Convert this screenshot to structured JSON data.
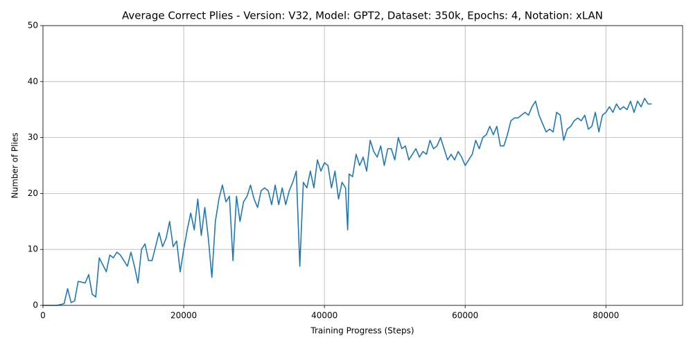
{
  "chart_data": {
    "type": "line",
    "title": "Average Correct Plies - Version: V32, Model: GPT2, Dataset: 350k, Epochs: 4, Notation: xLAN",
    "x_label": "Training Progress (Steps)",
    "y_label": "Number of Plies",
    "x": [
      0,
      1000,
      2000,
      3000,
      3500,
      4000,
      4500,
      5000,
      6000,
      6500,
      7000,
      7500,
      8000,
      9000,
      9500,
      10000,
      10500,
      11000,
      12000,
      12500,
      13000,
      13500,
      14000,
      14500,
      15000,
      15500,
      16000,
      16500,
      17000,
      17500,
      18000,
      18500,
      19000,
      19500,
      20000,
      20500,
      21000,
      21500,
      22000,
      22500,
      23000,
      23500,
      24000,
      24500,
      25000,
      25500,
      26000,
      26500,
      27000,
      27500,
      28000,
      28500,
      29000,
      29500,
      30000,
      30500,
      31000,
      31500,
      32000,
      32500,
      33000,
      33500,
      34000,
      34500,
      35000,
      35500,
      36000,
      36500,
      37000,
      37500,
      38000,
      38500,
      39000,
      39500,
      40000,
      40500,
      41000,
      41500,
      42000,
      42500,
      43000,
      43300,
      43500,
      44000,
      44500,
      45000,
      45500,
      46000,
      46500,
      47000,
      47500,
      48000,
      48500,
      49000,
      49500,
      50000,
      50500,
      51000,
      51500,
      52000,
      52500,
      53000,
      53500,
      54000,
      54500,
      55000,
      55500,
      56000,
      56500,
      57000,
      57500,
      58000,
      58500,
      59000,
      59500,
      60000,
      60500,
      61000,
      61500,
      62000,
      62500,
      63000,
      63500,
      64000,
      64500,
      65000,
      65500,
      66000,
      66500,
      67000,
      67500,
      68000,
      68500,
      69000,
      69500,
      70000,
      70500,
      71000,
      71500,
      72000,
      72500,
      73000,
      73500,
      74000,
      74500,
      75000,
      75500,
      76000,
      76500,
      77000,
      77500,
      78000,
      78500,
      79000,
      79500,
      80000,
      80500,
      81000,
      81500,
      82000,
      82500,
      83000,
      83500,
      84000,
      84500,
      85000,
      85500,
      86000,
      86500
    ],
    "series": [
      {
        "name": "Average Correct Plies",
        "color": "#1f77b4",
        "values": [
          0,
          0,
          0,
          0.3,
          3,
          0.5,
          0.8,
          4.3,
          4,
          5.5,
          2,
          1.5,
          8.5,
          6,
          9,
          8.5,
          9.5,
          9,
          7,
          9.5,
          7,
          4,
          10,
          11,
          8,
          8,
          10.5,
          13,
          10.5,
          12,
          15,
          10.5,
          11.5,
          6,
          10,
          13.5,
          16.5,
          13.5,
          19,
          12.5,
          17.5,
          12,
          5,
          15,
          19,
          21.5,
          18.5,
          19.5,
          8,
          19.5,
          15,
          18.5,
          19.5,
          21.5,
          19,
          17.5,
          20.5,
          21,
          20.5,
          18,
          21.5,
          18,
          21,
          18,
          20.5,
          22,
          24,
          7,
          22,
          21,
          24,
          21,
          26,
          24,
          25.5,
          25,
          21,
          24,
          19,
          22,
          21,
          13.5,
          23.5,
          23,
          27,
          25,
          26.5,
          24,
          29.5,
          27.5,
          26.5,
          28.5,
          25,
          28,
          28,
          26,
          30,
          28,
          28.5,
          26,
          27,
          28,
          26.5,
          27.5,
          27,
          29.5,
          28,
          28.5,
          30,
          28,
          26,
          27,
          26,
          27.5,
          26.5,
          25,
          26,
          27,
          29.5,
          28,
          30,
          30.5,
          32,
          30.5,
          32,
          28.5,
          28.5,
          30.5,
          33,
          33.5,
          33.5,
          34,
          34.5,
          34,
          35.5,
          36.5,
          34,
          32.5,
          31,
          31.5,
          31,
          34.5,
          34,
          29.5,
          31.5,
          32,
          33,
          33.5,
          33,
          34,
          31.5,
          32,
          34.5,
          31,
          34,
          34.5,
          35.5,
          34.5,
          36,
          35,
          35.5,
          35,
          36.5,
          34.5,
          36.5,
          35.5,
          37,
          36,
          36
        ]
      }
    ],
    "xlim": [
      0,
      90900
    ],
    "ylim": [
      0,
      50
    ],
    "xticks": [
      0,
      20000,
      40000,
      60000,
      80000
    ],
    "yticks": [
      0,
      10,
      20,
      30,
      40,
      50
    ],
    "grid": true
  }
}
